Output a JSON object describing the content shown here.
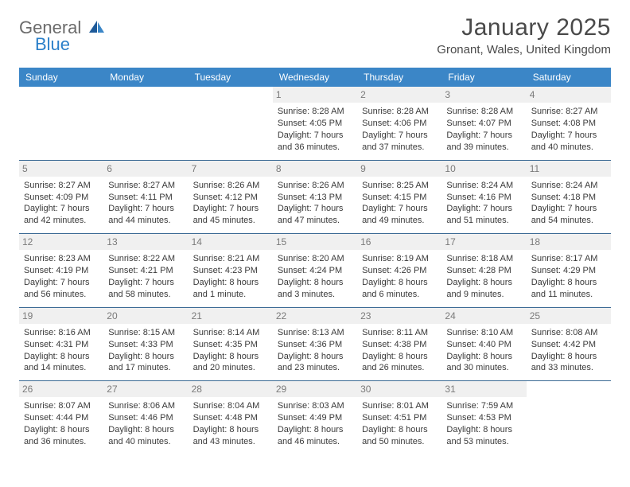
{
  "logo": {
    "general": "General",
    "blue": "Blue"
  },
  "title": "January 2025",
  "location": "Gronant, Wales, United Kingdom",
  "colors": {
    "header_bg": "#3b86c7",
    "header_text": "#ffffff",
    "border": "#3b6a94",
    "daynum_bg": "#f0f0f0",
    "daynum_text": "#7a7a7a",
    "body_text": "#3a3a3a",
    "title_text": "#4a4a4a",
    "logo_gray": "#6b6b6b",
    "logo_blue": "#2a7fc9"
  },
  "dayNames": [
    "Sunday",
    "Monday",
    "Tuesday",
    "Wednesday",
    "Thursday",
    "Friday",
    "Saturday"
  ],
  "weeks": [
    [
      {
        "empty": true
      },
      {
        "empty": true
      },
      {
        "empty": true
      },
      {
        "n": "1",
        "sr": "Sunrise: 8:28 AM",
        "ss": "Sunset: 4:05 PM",
        "d1": "Daylight: 7 hours",
        "d2": "and 36 minutes."
      },
      {
        "n": "2",
        "sr": "Sunrise: 8:28 AM",
        "ss": "Sunset: 4:06 PM",
        "d1": "Daylight: 7 hours",
        "d2": "and 37 minutes."
      },
      {
        "n": "3",
        "sr": "Sunrise: 8:28 AM",
        "ss": "Sunset: 4:07 PM",
        "d1": "Daylight: 7 hours",
        "d2": "and 39 minutes."
      },
      {
        "n": "4",
        "sr": "Sunrise: 8:27 AM",
        "ss": "Sunset: 4:08 PM",
        "d1": "Daylight: 7 hours",
        "d2": "and 40 minutes."
      }
    ],
    [
      {
        "n": "5",
        "sr": "Sunrise: 8:27 AM",
        "ss": "Sunset: 4:09 PM",
        "d1": "Daylight: 7 hours",
        "d2": "and 42 minutes."
      },
      {
        "n": "6",
        "sr": "Sunrise: 8:27 AM",
        "ss": "Sunset: 4:11 PM",
        "d1": "Daylight: 7 hours",
        "d2": "and 44 minutes."
      },
      {
        "n": "7",
        "sr": "Sunrise: 8:26 AM",
        "ss": "Sunset: 4:12 PM",
        "d1": "Daylight: 7 hours",
        "d2": "and 45 minutes."
      },
      {
        "n": "8",
        "sr": "Sunrise: 8:26 AM",
        "ss": "Sunset: 4:13 PM",
        "d1": "Daylight: 7 hours",
        "d2": "and 47 minutes."
      },
      {
        "n": "9",
        "sr": "Sunrise: 8:25 AM",
        "ss": "Sunset: 4:15 PM",
        "d1": "Daylight: 7 hours",
        "d2": "and 49 minutes."
      },
      {
        "n": "10",
        "sr": "Sunrise: 8:24 AM",
        "ss": "Sunset: 4:16 PM",
        "d1": "Daylight: 7 hours",
        "d2": "and 51 minutes."
      },
      {
        "n": "11",
        "sr": "Sunrise: 8:24 AM",
        "ss": "Sunset: 4:18 PM",
        "d1": "Daylight: 7 hours",
        "d2": "and 54 minutes."
      }
    ],
    [
      {
        "n": "12",
        "sr": "Sunrise: 8:23 AM",
        "ss": "Sunset: 4:19 PM",
        "d1": "Daylight: 7 hours",
        "d2": "and 56 minutes."
      },
      {
        "n": "13",
        "sr": "Sunrise: 8:22 AM",
        "ss": "Sunset: 4:21 PM",
        "d1": "Daylight: 7 hours",
        "d2": "and 58 minutes."
      },
      {
        "n": "14",
        "sr": "Sunrise: 8:21 AM",
        "ss": "Sunset: 4:23 PM",
        "d1": "Daylight: 8 hours",
        "d2": "and 1 minute."
      },
      {
        "n": "15",
        "sr": "Sunrise: 8:20 AM",
        "ss": "Sunset: 4:24 PM",
        "d1": "Daylight: 8 hours",
        "d2": "and 3 minutes."
      },
      {
        "n": "16",
        "sr": "Sunrise: 8:19 AM",
        "ss": "Sunset: 4:26 PM",
        "d1": "Daylight: 8 hours",
        "d2": "and 6 minutes."
      },
      {
        "n": "17",
        "sr": "Sunrise: 8:18 AM",
        "ss": "Sunset: 4:28 PM",
        "d1": "Daylight: 8 hours",
        "d2": "and 9 minutes."
      },
      {
        "n": "18",
        "sr": "Sunrise: 8:17 AM",
        "ss": "Sunset: 4:29 PM",
        "d1": "Daylight: 8 hours",
        "d2": "and 11 minutes."
      }
    ],
    [
      {
        "n": "19",
        "sr": "Sunrise: 8:16 AM",
        "ss": "Sunset: 4:31 PM",
        "d1": "Daylight: 8 hours",
        "d2": "and 14 minutes."
      },
      {
        "n": "20",
        "sr": "Sunrise: 8:15 AM",
        "ss": "Sunset: 4:33 PM",
        "d1": "Daylight: 8 hours",
        "d2": "and 17 minutes."
      },
      {
        "n": "21",
        "sr": "Sunrise: 8:14 AM",
        "ss": "Sunset: 4:35 PM",
        "d1": "Daylight: 8 hours",
        "d2": "and 20 minutes."
      },
      {
        "n": "22",
        "sr": "Sunrise: 8:13 AM",
        "ss": "Sunset: 4:36 PM",
        "d1": "Daylight: 8 hours",
        "d2": "and 23 minutes."
      },
      {
        "n": "23",
        "sr": "Sunrise: 8:11 AM",
        "ss": "Sunset: 4:38 PM",
        "d1": "Daylight: 8 hours",
        "d2": "and 26 minutes."
      },
      {
        "n": "24",
        "sr": "Sunrise: 8:10 AM",
        "ss": "Sunset: 4:40 PM",
        "d1": "Daylight: 8 hours",
        "d2": "and 30 minutes."
      },
      {
        "n": "25",
        "sr": "Sunrise: 8:08 AM",
        "ss": "Sunset: 4:42 PM",
        "d1": "Daylight: 8 hours",
        "d2": "and 33 minutes."
      }
    ],
    [
      {
        "n": "26",
        "sr": "Sunrise: 8:07 AM",
        "ss": "Sunset: 4:44 PM",
        "d1": "Daylight: 8 hours",
        "d2": "and 36 minutes."
      },
      {
        "n": "27",
        "sr": "Sunrise: 8:06 AM",
        "ss": "Sunset: 4:46 PM",
        "d1": "Daylight: 8 hours",
        "d2": "and 40 minutes."
      },
      {
        "n": "28",
        "sr": "Sunrise: 8:04 AM",
        "ss": "Sunset: 4:48 PM",
        "d1": "Daylight: 8 hours",
        "d2": "and 43 minutes."
      },
      {
        "n": "29",
        "sr": "Sunrise: 8:03 AM",
        "ss": "Sunset: 4:49 PM",
        "d1": "Daylight: 8 hours",
        "d2": "and 46 minutes."
      },
      {
        "n": "30",
        "sr": "Sunrise: 8:01 AM",
        "ss": "Sunset: 4:51 PM",
        "d1": "Daylight: 8 hours",
        "d2": "and 50 minutes."
      },
      {
        "n": "31",
        "sr": "Sunrise: 7:59 AM",
        "ss": "Sunset: 4:53 PM",
        "d1": "Daylight: 8 hours",
        "d2": "and 53 minutes."
      },
      {
        "empty": true
      }
    ]
  ]
}
